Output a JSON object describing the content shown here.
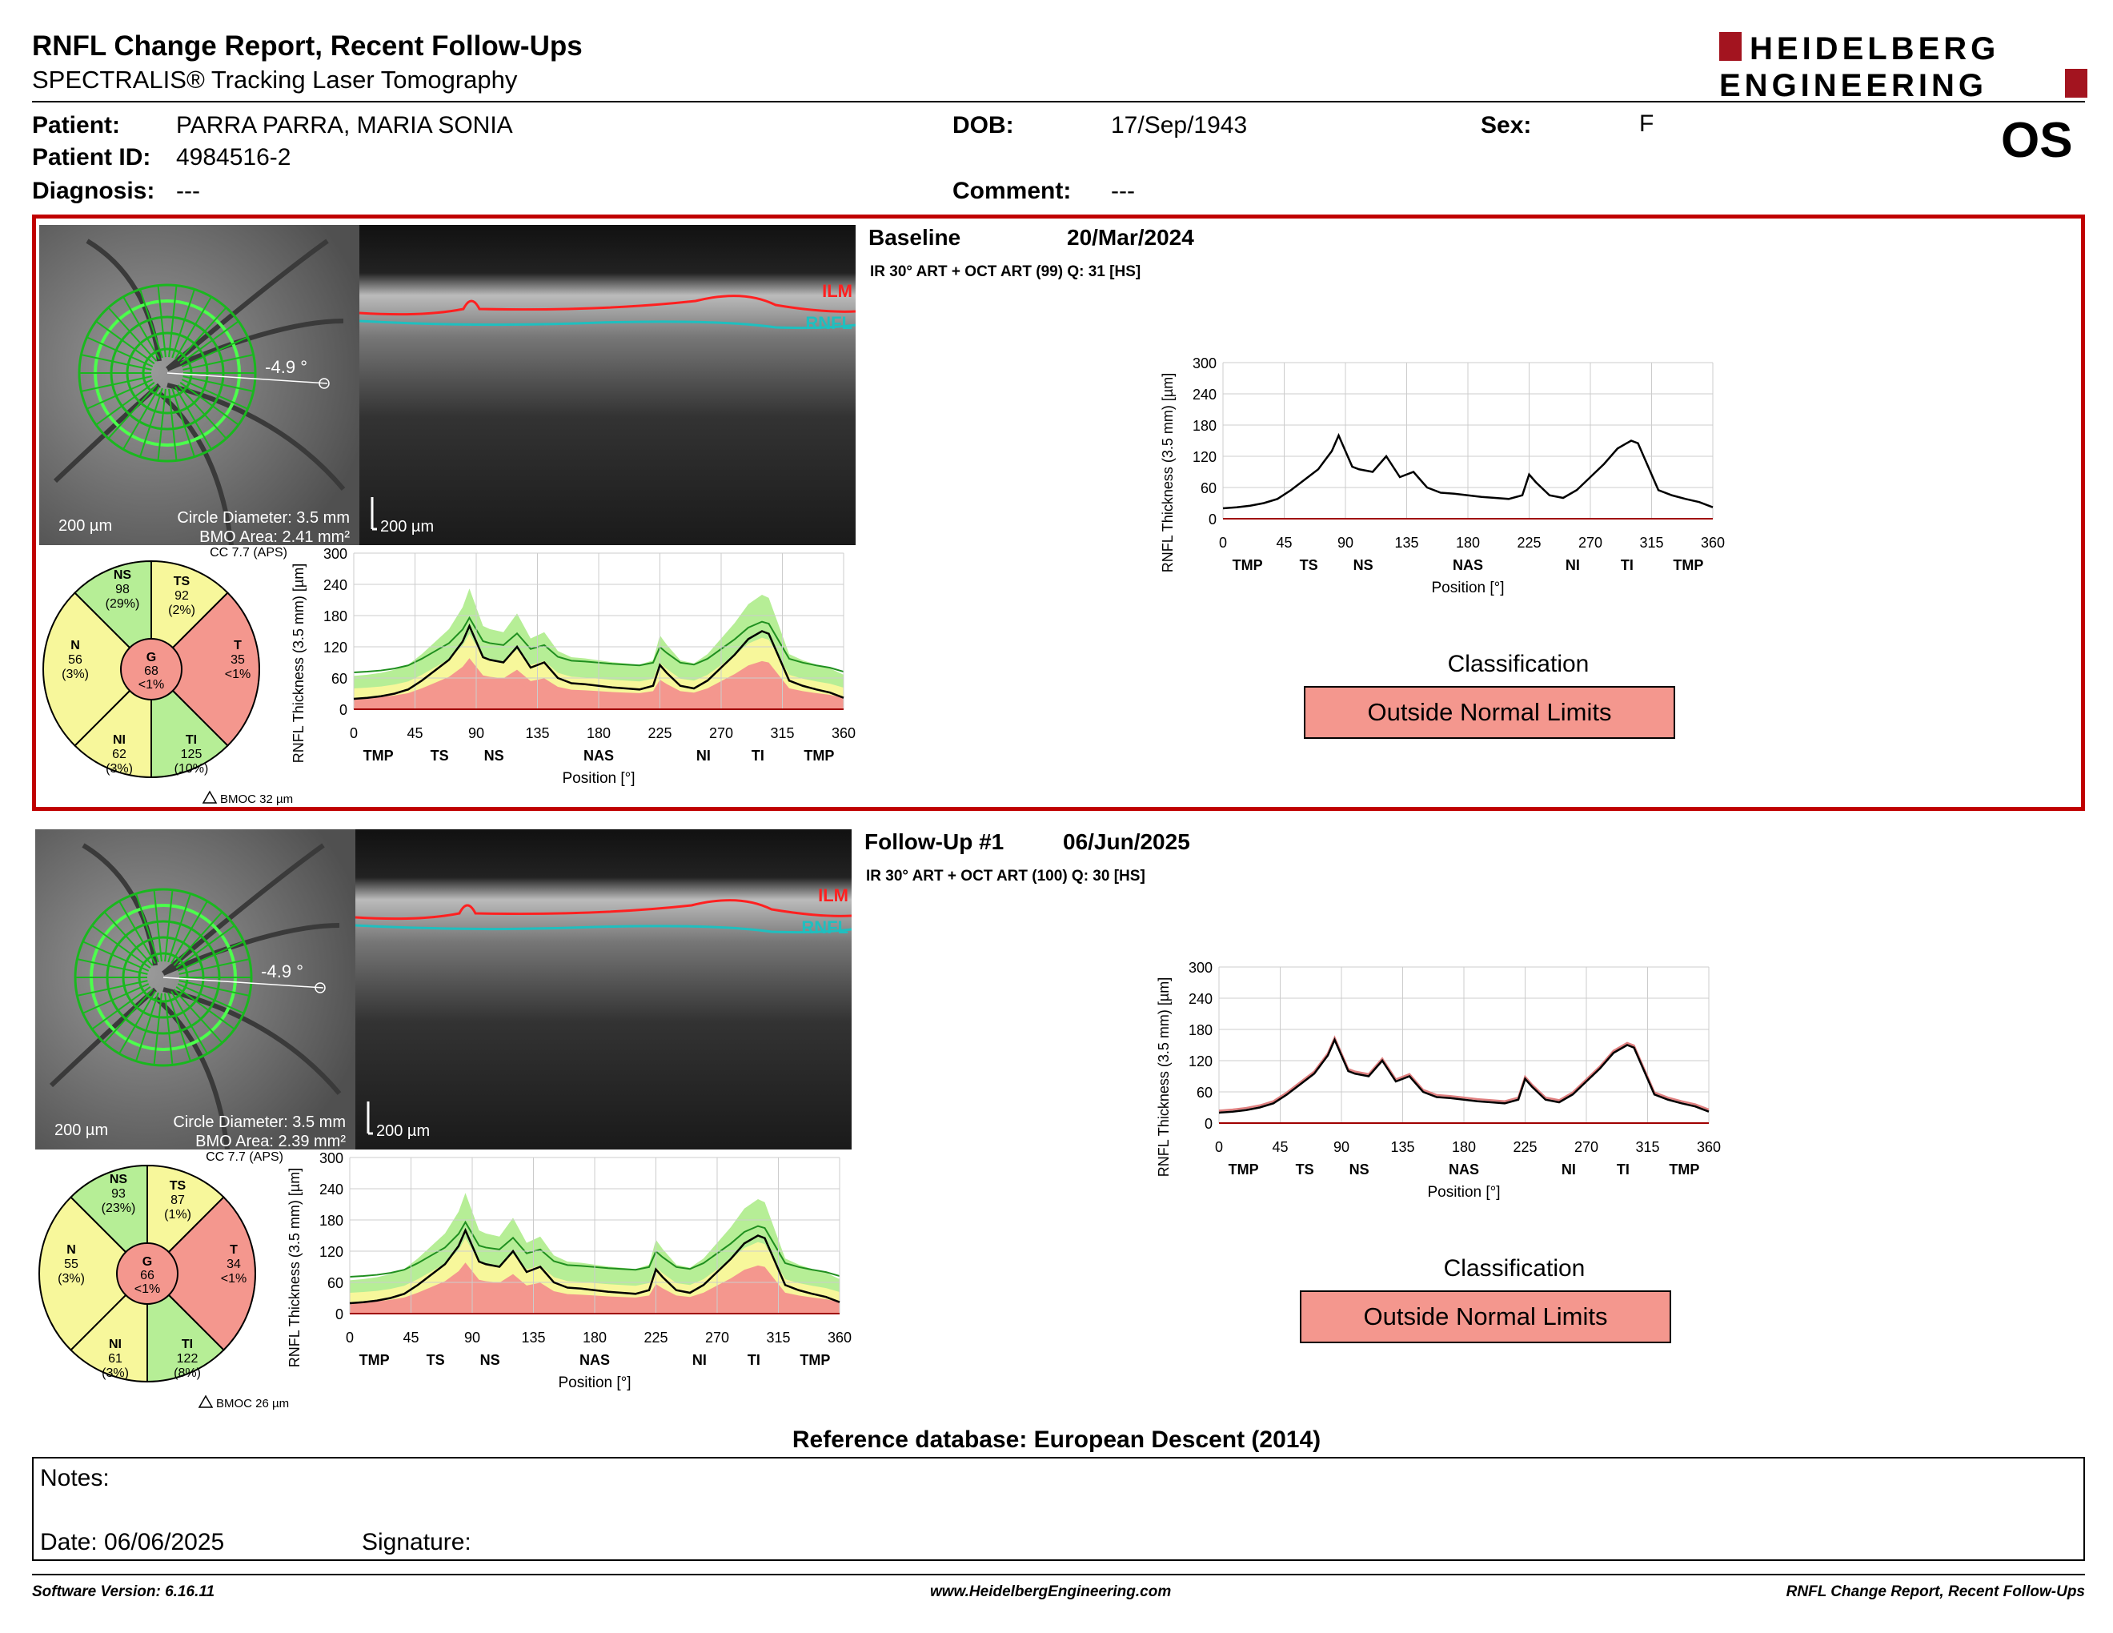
{
  "header": {
    "title": "RNFL Change Report, Recent Follow-Ups",
    "subtitle": "SPECTRALIS® Tracking Laser Tomography",
    "logo_line1": "HEIDELBERG",
    "logo_line2": "ENGINEERING",
    "eye": "OS"
  },
  "patient": {
    "name_label": "Patient:",
    "name": "PARRA PARRA, MARIA SONIA",
    "id_label": "Patient ID:",
    "id": "4984516-2",
    "diag_label": "Diagnosis:",
    "diag": "---",
    "dob_label": "DOB:",
    "dob": "17/Sep/1943",
    "comment_label": "Comment:",
    "comment": "---",
    "sex_label": "Sex:",
    "sex": "F"
  },
  "exams": [
    {
      "title": "Baseline",
      "date": "20/Mar/2024",
      "info": "IR 30° ART + OCT ART (99) Q: 31 [HS]",
      "angle": "-4.9 °",
      "scale": "200 µm",
      "circle": "Circle Diameter: 3.5 mm",
      "bmo": "BMO Area: 2.41 mm²",
      "oct_scale": "200 µm",
      "ilm": "ILM",
      "rnfl": "RNFL",
      "cc": "CC 7.7 (APS)",
      "bmoc": "BMOC 32 µm",
      "sectors": {
        "NS": {
          "label": "NS",
          "value": "98",
          "pct": "(29%)",
          "color": "#b6ee96"
        },
        "TS": {
          "label": "TS",
          "value": "92",
          "pct": "(2%)",
          "color": "#f7f79b"
        },
        "T": {
          "label": "T",
          "value": "35",
          "pct": "<1%",
          "color": "#f4978e"
        },
        "TI": {
          "label": "TI",
          "value": "125",
          "pct": "(10%)",
          "color": "#b6ee96"
        },
        "NI": {
          "label": "NI",
          "value": "62",
          "pct": "(3%)",
          "color": "#f7f79b"
        },
        "N": {
          "label": "N",
          "value": "56",
          "pct": "(3%)",
          "color": "#f7f79b"
        },
        "G": {
          "label": "G",
          "value": "68",
          "pct": "<1%",
          "color": "#f4978e"
        }
      },
      "classification_title": "Classification",
      "classification": "Outside Normal Limits"
    },
    {
      "title": "Follow-Up #1",
      "date": "06/Jun/2025",
      "info": "IR 30° ART + OCT ART (100) Q: 30 [HS]",
      "angle": "-4.9 °",
      "scale": "200 µm",
      "circle": "Circle Diameter: 3.5 mm",
      "bmo": "BMO Area: 2.39 mm²",
      "oct_scale": "200 µm",
      "ilm": "ILM",
      "rnfl": "RNFL",
      "cc": "CC 7.7 (APS)",
      "bmoc": "BMOC 26 µm",
      "sectors": {
        "NS": {
          "label": "NS",
          "value": "93",
          "pct": "(23%)",
          "color": "#b6ee96"
        },
        "TS": {
          "label": "TS",
          "value": "87",
          "pct": "(1%)",
          "color": "#f7f79b"
        },
        "T": {
          "label": "T",
          "value": "34",
          "pct": "<1%",
          "color": "#f4978e"
        },
        "TI": {
          "label": "TI",
          "value": "122",
          "pct": "(8%)",
          "color": "#b6ee96"
        },
        "NI": {
          "label": "NI",
          "value": "61",
          "pct": "(3%)",
          "color": "#f7f79b"
        },
        "N": {
          "label": "N",
          "value": "55",
          "pct": "(3%)",
          "color": "#f7f79b"
        },
        "G": {
          "label": "G",
          "value": "66",
          "pct": "<1%",
          "color": "#f4978e"
        }
      },
      "classification_title": "Classification",
      "classification": "Outside Normal Limits"
    }
  ],
  "chart_data": [
    {
      "type": "line",
      "ylabel": "RNFL Thickness (3.5 mm) [µm]",
      "xlabel": "Position [°]",
      "xlim": [
        0,
        360
      ],
      "ylim": [
        0,
        300
      ],
      "xticks": [
        0,
        45,
        90,
        135,
        180,
        225,
        270,
        315,
        360
      ],
      "yticks": [
        0,
        60,
        120,
        180,
        240,
        300
      ],
      "region_labels": [
        {
          "x": 18,
          "t": "TMP"
        },
        {
          "x": 63,
          "t": "TS"
        },
        {
          "x": 103,
          "t": "NS"
        },
        {
          "x": 180,
          "t": "NAS"
        },
        {
          "x": 257,
          "t": "NI"
        },
        {
          "x": 297,
          "t": "TI"
        },
        {
          "x": 342,
          "t": "TMP"
        }
      ],
      "x": [
        0,
        10,
        20,
        30,
        40,
        50,
        60,
        70,
        80,
        85,
        90,
        95,
        100,
        110,
        120,
        125,
        130,
        140,
        150,
        160,
        170,
        180,
        190,
        200,
        210,
        220,
        225,
        230,
        240,
        250,
        260,
        270,
        280,
        290,
        300,
        305,
        310,
        320,
        330,
        340,
        350,
        360
      ],
      "series": [
        {
          "y": [
            20,
            22,
            25,
            30,
            38,
            55,
            75,
            95,
            130,
            160,
            130,
            100,
            95,
            90,
            120,
            100,
            80,
            90,
            60,
            50,
            48,
            45,
            42,
            40,
            38,
            45,
            85,
            70,
            45,
            40,
            55,
            80,
            105,
            135,
            150,
            145,
            115,
            55,
            45,
            38,
            32,
            22
          ]
        }
      ]
    }
  ]
}
